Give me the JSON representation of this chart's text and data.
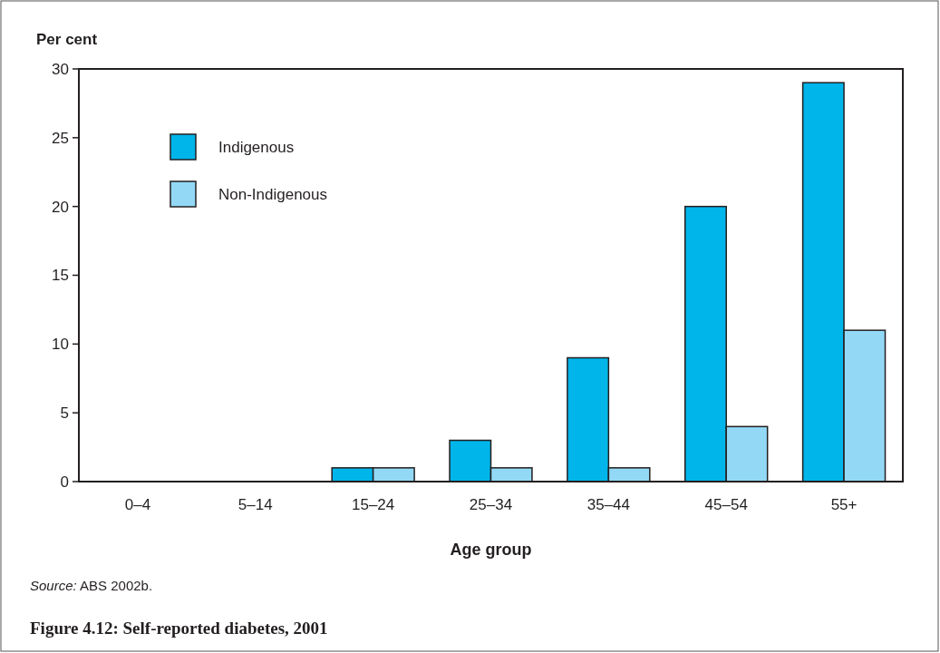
{
  "chart_data": {
    "type": "bar",
    "title": "Figure 4.12: Self-reported diabetes, 2001",
    "xlabel": "Age group",
    "ylabel": "Per cent",
    "categories": [
      "0–4",
      "5–14",
      "15–24",
      "25–34",
      "35–44",
      "45–54",
      "55+"
    ],
    "series": [
      {
        "name": "Indigenous",
        "color": "#00b5ea",
        "values": [
          0,
          0,
          1,
          3,
          9,
          20,
          29
        ]
      },
      {
        "name": "Non-Indigenous",
        "color": "#93d9f6",
        "values": [
          0,
          0,
          1,
          1,
          1,
          4,
          11
        ]
      }
    ],
    "ylim": [
      0,
      30
    ],
    "yticks": [
      0,
      5,
      10,
      15,
      20,
      25,
      30
    ],
    "grid": false,
    "legend": "top left",
    "annotations": [
      "Source: ABS 2002b."
    ]
  }
}
